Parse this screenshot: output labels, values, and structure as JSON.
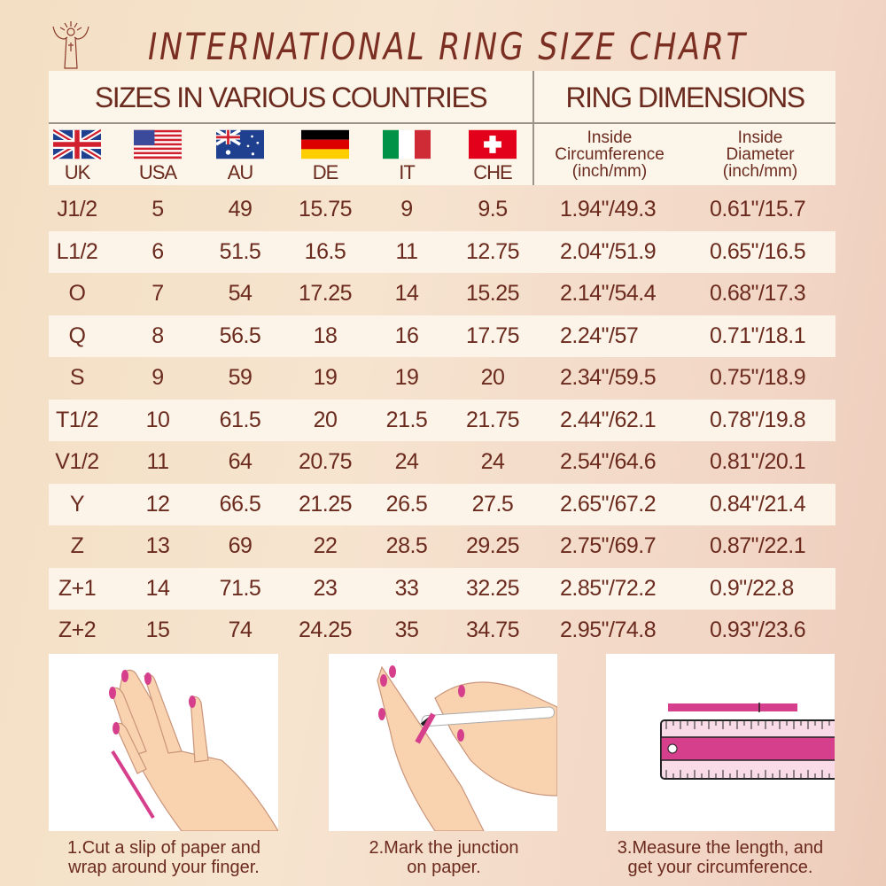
{
  "title": "INTERNATIONAL RING SIZE CHART",
  "header": {
    "sizes_title": "SIZES IN VARIOUS COUNTRIES",
    "dimensions_title": "RING DIMENSIONS",
    "countries": [
      {
        "label": "UK",
        "flag": "uk-flag"
      },
      {
        "label": "USA",
        "flag": "usa-flag"
      },
      {
        "label": "AU",
        "flag": "au-flag"
      },
      {
        "label": "DE",
        "flag": "de-flag"
      },
      {
        "label": "IT",
        "flag": "it-flag"
      },
      {
        "label": "CHE",
        "flag": "che-flag"
      }
    ],
    "circumference": {
      "line1": "Inside",
      "line2": "Circumference",
      "line3": "(inch/mm)"
    },
    "diameter": {
      "line1": "Inside",
      "line2": "Diameter",
      "line3": "(inch/mm)"
    }
  },
  "rows": [
    [
      "J1/2",
      "5",
      "49",
      "15.75",
      "9",
      "9.5",
      "1.94\"/49.3",
      "0.61\"/15.7"
    ],
    [
      "L1/2",
      "6",
      "51.5",
      "16.5",
      "11",
      "12.75",
      "2.04\"/51.9",
      "0.65\"/16.5"
    ],
    [
      "O",
      "7",
      "54",
      "17.25",
      "14",
      "15.25",
      "2.14\"/54.4",
      "0.68\"/17.3"
    ],
    [
      "Q",
      "8",
      "56.5",
      "18",
      "16",
      "17.75",
      "2.24\"/57",
      "0.71\"/18.1"
    ],
    [
      "S",
      "9",
      "59",
      "19",
      "19",
      "20",
      "2.34\"/59.5",
      "0.75\"/18.9"
    ],
    [
      "T1/2",
      "10",
      "61.5",
      "20",
      "21.5",
      "21.75",
      "2.44\"/62.1",
      "0.78\"/19.8"
    ],
    [
      "V1/2",
      "11",
      "64",
      "20.75",
      "24",
      "24",
      "2.54\"/64.6",
      "0.81\"/20.1"
    ],
    [
      "Y",
      "12",
      "66.5",
      "21.25",
      "26.5",
      "27.5",
      "2.65\"/67.2",
      "0.84\"/21.4"
    ],
    [
      "Z",
      "13",
      "69",
      "22",
      "28.5",
      "29.25",
      "2.75\"/69.7",
      "0.87\"/22.1"
    ],
    [
      "Z+1",
      "14",
      "71.5",
      "23",
      "33",
      "32.25",
      "2.85\"/72.2",
      "0.9\"/22.8"
    ],
    [
      "Z+2",
      "15",
      "74",
      "24.25",
      "35",
      "34.75",
      "2.95\"/74.8",
      "0.93\"/23.6"
    ]
  ],
  "steps": [
    {
      "line1": "1.Cut a slip of paper and",
      "line2": "wrap around your finger."
    },
    {
      "line1": "2.Mark the junction",
      "line2": "on paper."
    },
    {
      "line1": "3.Measure the length, and",
      "line2": "get your circumference."
    }
  ],
  "colors": {
    "text": "#6b2a1e",
    "accent": "#d63f8c",
    "skin": "#f9d2b0"
  }
}
